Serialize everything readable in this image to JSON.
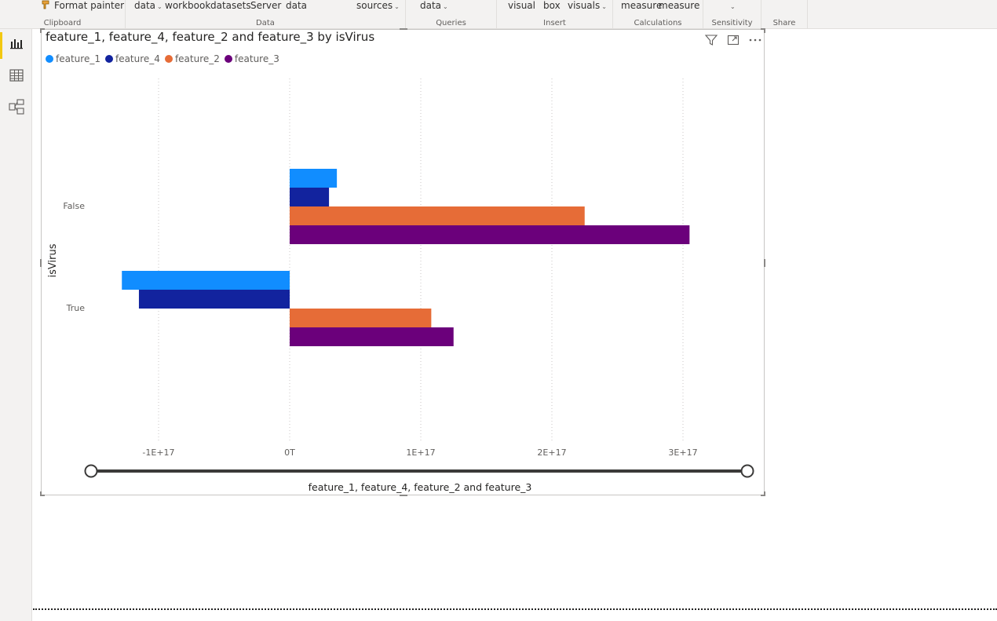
{
  "ribbon": {
    "groups": [
      {
        "name": "Clipboard",
        "buttons": [
          "Format painter"
        ]
      },
      {
        "name": "Data",
        "buttons": [
          "data",
          "workbook",
          "datasets",
          "Server",
          "data",
          "sources"
        ]
      },
      {
        "name": "Queries",
        "buttons": [
          "data"
        ]
      },
      {
        "name": "Insert",
        "buttons": [
          "visual",
          "box",
          "visuals"
        ]
      },
      {
        "name": "Calculations",
        "buttons": [
          "measure",
          "measure"
        ]
      },
      {
        "name": "Sensitivity",
        "buttons": []
      },
      {
        "name": "Share",
        "buttons": []
      }
    ]
  },
  "leftrail": {
    "items": [
      {
        "icon": "report-view-icon",
        "selected": true
      },
      {
        "icon": "data-view-icon",
        "selected": false
      },
      {
        "icon": "model-view-icon",
        "selected": false
      }
    ]
  },
  "visual": {
    "title": "feature_1, feature_4, feature_2 and feature_3 by isVirus",
    "header_icons": [
      "filter-icon",
      "focus-mode-icon",
      "more-options-icon"
    ]
  },
  "chart_data": {
    "type": "bar",
    "orientation": "horizontal",
    "title": "feature_1, feature_4, feature_2 and feature_3 by isVirus",
    "xlabel": "feature_1, feature_4, feature_2 and feature_3",
    "ylabel": "isVirus",
    "categories": [
      "False",
      "True"
    ],
    "series": [
      {
        "name": "feature_1",
        "color": "#118DFF",
        "values": [
          3.6e+16,
          -1.28e+17
        ]
      },
      {
        "name": "feature_4",
        "color": "#12239E",
        "values": [
          3e+16,
          -1.15e+17
        ]
      },
      {
        "name": "feature_2",
        "color": "#E66C37",
        "values": [
          2.25e+17,
          1.08e+17
        ]
      },
      {
        "name": "feature_3",
        "color": "#6B007B",
        "values": [
          3.05e+17,
          1.25e+17
        ]
      }
    ],
    "xlim": [
      -1e+17,
      3e+17
    ],
    "xticks": [
      {
        "value": -1e+17,
        "label": "-1E+17"
      },
      {
        "value": 0,
        "label": "0T"
      },
      {
        "value": 1e+17,
        "label": "1E+17"
      },
      {
        "value": 2e+17,
        "label": "2E+17"
      },
      {
        "value": 3e+17,
        "label": "3E+17"
      }
    ],
    "legend_position": "top-left",
    "grid": true
  }
}
